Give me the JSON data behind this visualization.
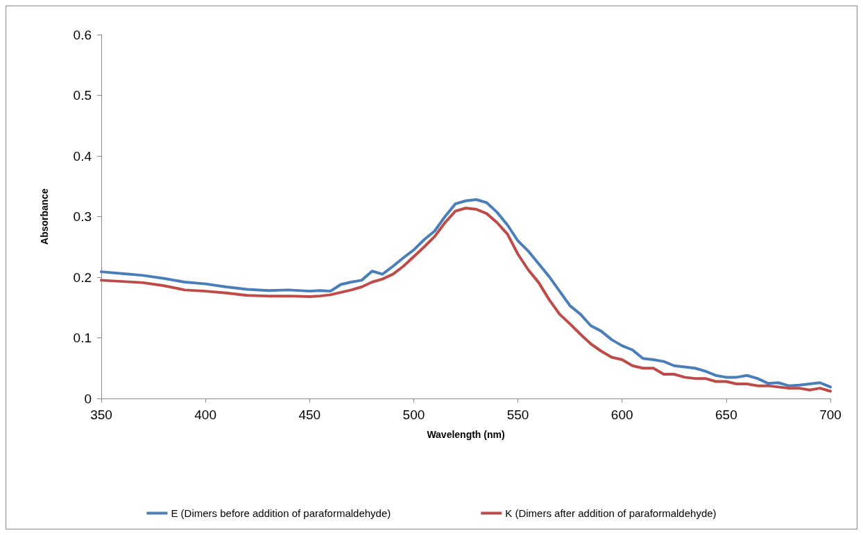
{
  "chart_data": {
    "type": "line",
    "xlabel": "Wavelength (nm)",
    "ylabel": "Absorbance",
    "x": [
      350,
      360,
      370,
      380,
      390,
      400,
      410,
      420,
      430,
      440,
      450,
      455,
      460,
      465,
      470,
      475,
      480,
      485,
      490,
      495,
      500,
      505,
      510,
      515,
      520,
      525,
      530,
      535,
      540,
      545,
      550,
      555,
      560,
      565,
      570,
      575,
      580,
      585,
      590,
      595,
      600,
      605,
      610,
      615,
      620,
      625,
      630,
      635,
      640,
      645,
      650,
      655,
      660,
      665,
      670,
      675,
      680,
      685,
      690,
      695,
      700
    ],
    "series": [
      {
        "name": "E (Dimers before addition of paraformaldehyde)",
        "color": "#4a7ebb",
        "values": [
          0.209,
          0.206,
          0.203,
          0.198,
          0.192,
          0.189,
          0.184,
          0.18,
          0.178,
          0.179,
          0.177,
          0.178,
          0.177,
          0.188,
          0.192,
          0.195,
          0.21,
          0.205,
          0.218,
          0.232,
          0.245,
          0.262,
          0.276,
          0.3,
          0.321,
          0.326,
          0.328,
          0.323,
          0.307,
          0.286,
          0.26,
          0.243,
          0.222,
          0.201,
          0.177,
          0.153,
          0.139,
          0.12,
          0.111,
          0.097,
          0.087,
          0.08,
          0.066,
          0.064,
          0.061,
          0.054,
          0.052,
          0.05,
          0.045,
          0.038,
          0.035,
          0.035,
          0.038,
          0.033,
          0.025,
          0.026,
          0.021,
          0.022,
          0.024,
          0.026,
          0.019
        ]
      },
      {
        "name": "K (Dimers after addition of paraformaldehyde)",
        "color": "#be4b48",
        "values": [
          0.195,
          0.193,
          0.191,
          0.186,
          0.179,
          0.177,
          0.174,
          0.17,
          0.169,
          0.169,
          0.168,
          0.169,
          0.171,
          0.175,
          0.179,
          0.184,
          0.192,
          0.197,
          0.205,
          0.218,
          0.234,
          0.25,
          0.267,
          0.29,
          0.309,
          0.314,
          0.312,
          0.305,
          0.29,
          0.271,
          0.238,
          0.212,
          0.191,
          0.163,
          0.139,
          0.123,
          0.106,
          0.09,
          0.078,
          0.068,
          0.064,
          0.054,
          0.05,
          0.05,
          0.04,
          0.04,
          0.035,
          0.033,
          0.033,
          0.028,
          0.028,
          0.024,
          0.024,
          0.021,
          0.021,
          0.019,
          0.017,
          0.017,
          0.014,
          0.017,
          0.012
        ]
      }
    ],
    "xlim": [
      350,
      700
    ],
    "xticks": [
      350,
      400,
      450,
      500,
      550,
      600,
      650,
      700
    ],
    "ylim": [
      0,
      0.6
    ],
    "yticks": [
      0,
      0.1,
      0.2,
      0.3,
      0.4,
      0.5,
      0.6
    ],
    "grid": false,
    "legend": "bottom",
    "marker": "none",
    "line_style": "solid"
  }
}
